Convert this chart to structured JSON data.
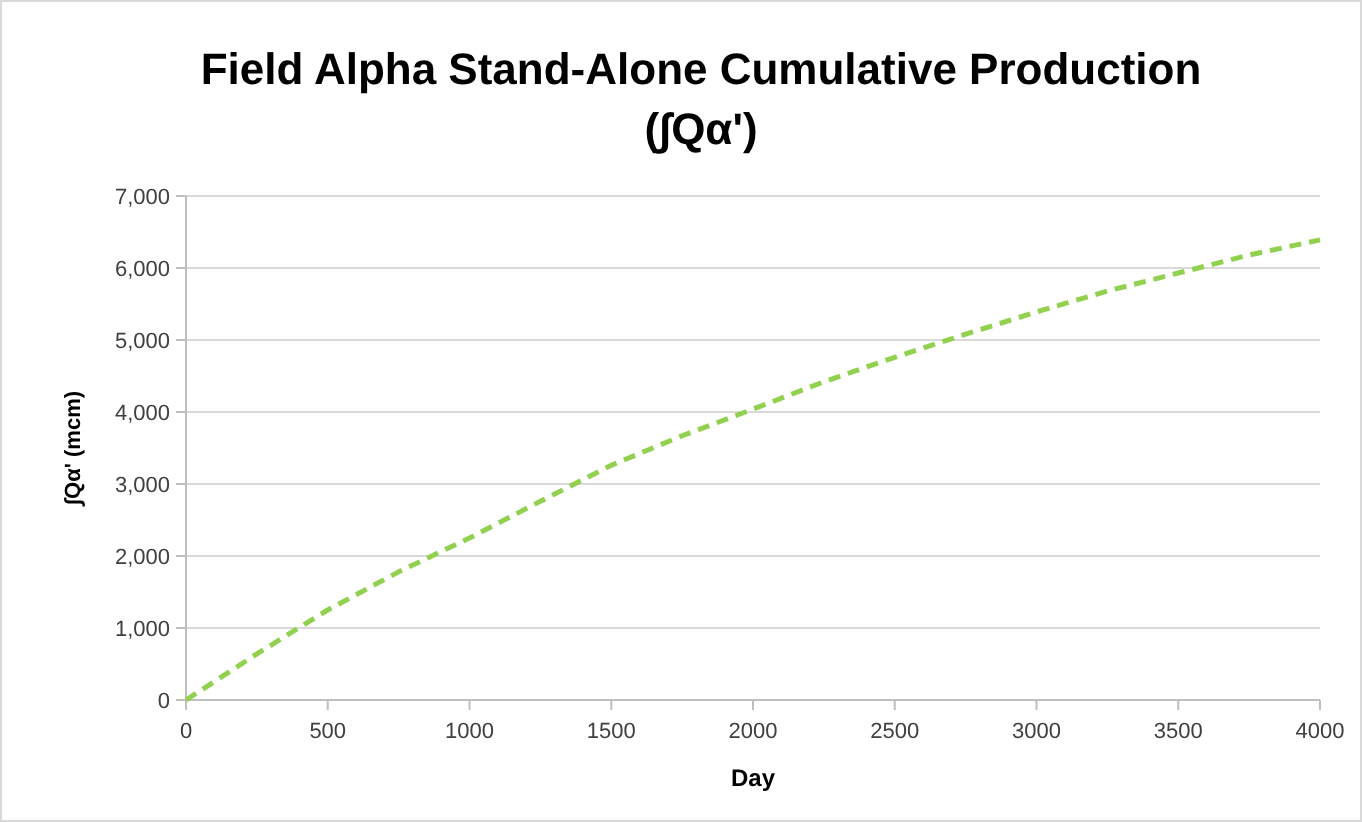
{
  "chart_data": {
    "type": "line",
    "title": "Field Alpha Stand-Alone Cumulative Production",
    "subtitle": "(∫Qα')",
    "xlabel": "Day",
    "ylabel": "∫Qα' (mcm)",
    "x": [
      0,
      250,
      500,
      750,
      1000,
      1250,
      1500,
      1750,
      2000,
      2250,
      2500,
      2750,
      3000,
      3250,
      3500,
      3750,
      4000
    ],
    "series": [
      {
        "color": "#92d050",
        "values": [
          0,
          640,
          1250,
          1780,
          2250,
          2760,
          3260,
          3670,
          4040,
          4420,
          4760,
          5080,
          5390,
          5680,
          5930,
          6180,
          6390
        ]
      }
    ],
    "xlim": [
      0,
      4000
    ],
    "xticks": [
      0,
      500,
      1000,
      1500,
      2000,
      2500,
      3000,
      3500,
      4000
    ],
    "ylim": [
      0,
      7000
    ],
    "yticks": [
      {
        "value": 0,
        "label": "0"
      },
      {
        "value": 1000,
        "label": "1,000"
      },
      {
        "value": 2000,
        "label": "2,000"
      },
      {
        "value": 3000,
        "label": "3,000"
      },
      {
        "value": 4000,
        "label": "4,000"
      },
      {
        "value": 5000,
        "label": "5,000"
      },
      {
        "value": 6000,
        "label": "6,000"
      },
      {
        "value": 7000,
        "label": "7,000"
      }
    ],
    "grid": "y",
    "line_style": "dashed",
    "marker": "none"
  }
}
